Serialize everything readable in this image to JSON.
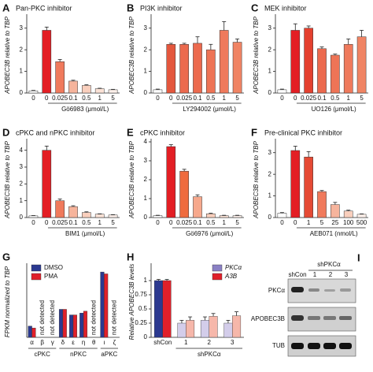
{
  "chart_data": [
    {
      "type": "bar",
      "panel": "A",
      "title": "Pan-PKC inhibitor",
      "ylabel": "APOBEC3B relative to TBP",
      "xlabel": "Gö6983 (μmol/L)",
      "categories": [
        "0",
        "0",
        "0.025",
        "0.1",
        "0.5",
        "1",
        "5"
      ],
      "values": [
        0.1,
        2.9,
        1.45,
        0.55,
        0.35,
        0.2,
        0.15
      ],
      "errors": [
        0.02,
        0.15,
        0.1,
        0.04,
        0.03,
        0.02,
        0.02
      ],
      "colors": [
        "#ffffff",
        "#e31e24",
        "#f07a5c",
        "#f6b49c",
        "#f9cfbd",
        "#fbe2d6",
        "#fdf0ea"
      ],
      "ylim": [
        0,
        3.5
      ],
      "yticks": [
        0,
        1,
        2,
        3
      ]
    },
    {
      "type": "bar",
      "panel": "B",
      "title": "PI3K inhibitor",
      "ylabel": "APOBEC3B relative to TBP",
      "xlabel": "LY294002 (μmol/L)",
      "categories": [
        "0",
        "0",
        "0.025",
        "0.1",
        "0.5",
        "1",
        "5"
      ],
      "values": [
        0.15,
        2.25,
        2.25,
        2.3,
        2.0,
        2.9,
        2.35
      ],
      "errors": [
        0.03,
        0.05,
        0.05,
        0.3,
        0.25,
        0.4,
        0.15
      ],
      "colors": [
        "#ffffff",
        "#e4573d",
        "#ec6a4e",
        "#ec6a4e",
        "#ee7456",
        "#ef7a5c",
        "#f08464"
      ],
      "ylim": [
        0,
        3.5
      ],
      "yticks": [
        0,
        1,
        2,
        3
      ]
    },
    {
      "type": "bar",
      "panel": "C",
      "title": "MEK inhibitor",
      "ylabel": "APOBEC3B relative to TBP",
      "xlabel": "UO126 (μmol/L)",
      "categories": [
        "0",
        "0",
        "0.025",
        "0.1",
        "0.5",
        "1",
        "5"
      ],
      "values": [
        0.15,
        2.9,
        3.0,
        2.05,
        1.75,
        2.25,
        2.6
      ],
      "errors": [
        0.03,
        0.3,
        0.1,
        0.08,
        0.05,
        0.25,
        0.3
      ],
      "colors": [
        "#ffffff",
        "#e31e24",
        "#e4402e",
        "#ec6a4e",
        "#ee7456",
        "#ef7a5c",
        "#f08464"
      ],
      "ylim": [
        0,
        3.5
      ],
      "yticks": [
        0,
        1,
        2,
        3
      ]
    },
    {
      "type": "bar",
      "panel": "D",
      "title": "cPKC and nPKC inhibitor",
      "ylabel": "APOBEC3B relative to TBP",
      "xlabel": "BIM1 (μmol/L)",
      "categories": [
        "0",
        "0",
        "0.025",
        "0.1",
        "0.5",
        "1",
        "5"
      ],
      "values": [
        0.1,
        4.0,
        1.0,
        0.65,
        0.3,
        0.2,
        0.15
      ],
      "errors": [
        0.02,
        0.25,
        0.1,
        0.05,
        0.04,
        0.02,
        0.02
      ],
      "colors": [
        "#ffffff",
        "#e31e24",
        "#f07a5c",
        "#f6b49c",
        "#f9cfbd",
        "#fbe2d6",
        "#fdf0ea"
      ],
      "ylim": [
        0,
        4.5
      ],
      "yticks": [
        0,
        1,
        2,
        3,
        4
      ]
    },
    {
      "type": "bar",
      "panel": "E",
      "title": "cPKC inhibitor",
      "ylabel": "APOBEC3B relative to TBP",
      "xlabel": "Gö6976 (μmol/L)",
      "categories": [
        "0",
        "0",
        "0.025",
        "0.1",
        "0.5",
        "1",
        "5"
      ],
      "values": [
        0.1,
        3.75,
        2.45,
        1.1,
        0.2,
        0.1,
        0.1
      ],
      "errors": [
        0.02,
        0.1,
        0.1,
        0.1,
        0.03,
        0.02,
        0.02
      ],
      "colors": [
        "#ffffff",
        "#e31e24",
        "#ef6b3e",
        "#f6a88c",
        "#f9cfbd",
        "#fbe2d6",
        "#fdf0ea"
      ],
      "ylim": [
        0,
        4
      ],
      "yticks": [
        0,
        1,
        2,
        3,
        4
      ]
    },
    {
      "type": "bar",
      "panel": "F",
      "title": "Pre-clinical PKC inhibitor",
      "ylabel": "APOBEC3B relative to TBP",
      "xlabel": "AEB071 (nmol/L)",
      "categories": [
        "0",
        "0",
        "1",
        "5",
        "25",
        "100",
        "500"
      ],
      "values": [
        0.2,
        3.1,
        2.8,
        1.2,
        0.6,
        0.3,
        0.15
      ],
      "errors": [
        0.03,
        0.2,
        0.25,
        0.05,
        0.1,
        0.04,
        0.02
      ],
      "colors": [
        "#ffffff",
        "#e31e24",
        "#e54a34",
        "#f07a5c",
        "#f6b49c",
        "#f9cfbd",
        "#fdf0ea"
      ],
      "ylim": [
        0,
        3.5
      ],
      "yticks": [
        0,
        1,
        2,
        3
      ]
    },
    {
      "type": "grouped_bar",
      "panel": "G",
      "ylabel": "FPKM normalized to TBP",
      "categories": [
        "α",
        "β",
        "γ",
        "δ",
        "ε",
        "η",
        "θ",
        "ι",
        "ζ"
      ],
      "groups": [
        "cPKC",
        "nPKC",
        "aPKC"
      ],
      "annotations": [
        null,
        "not detected",
        "not detected",
        null,
        null,
        null,
        "not detected",
        null,
        "not detected"
      ],
      "series": [
        {
          "name": "DMSO",
          "color": "#2b3990",
          "values": [
            0.3,
            null,
            null,
            0.75,
            0.6,
            0.65,
            null,
            1.75,
            null
          ]
        },
        {
          "name": "PMA",
          "color": "#e0202a",
          "values": [
            0.25,
            null,
            null,
            0.75,
            0.6,
            0.7,
            null,
            1.7,
            null
          ]
        }
      ],
      "ylim": [
        0,
        1.9
      ],
      "legend": "upper left"
    },
    {
      "type": "grouped_bar",
      "panel": "H",
      "ylabel": "Relative APOBEC3B levels",
      "xlabel": "shPKCα",
      "categories": [
        "shCon",
        "1",
        "2",
        "3"
      ],
      "series": [
        {
          "name": "PKCα",
          "color": "#8a80c4",
          "colors": [
            "#2b3990",
            "#d3cdea",
            "#d3cdea",
            "#d3cdea"
          ],
          "values": [
            1,
            0.25,
            0.3,
            0.25
          ],
          "errors": [
            0.02,
            0.05,
            0.06,
            0.05
          ]
        },
        {
          "name": "A3B",
          "color": "#e0202a",
          "colors": [
            "#e0202a",
            "#f6b7aa",
            "#f6b7aa",
            "#f6b7aa"
          ],
          "values": [
            1,
            0.3,
            0.37,
            0.38
          ],
          "errors": [
            0.02,
            0.06,
            0.05,
            0.07
          ]
        }
      ],
      "ylim": [
        0,
        1.25
      ],
      "yticks": [
        0,
        0.25,
        0.5,
        0.75,
        1
      ],
      "legend": "upper right"
    }
  ],
  "blot": {
    "panel": "I",
    "title": "shPKCα",
    "lanes": [
      "shCon",
      "1",
      "2",
      "3"
    ],
    "rows": [
      "PKCα",
      "APOBEC3B",
      "TUB"
    ]
  }
}
